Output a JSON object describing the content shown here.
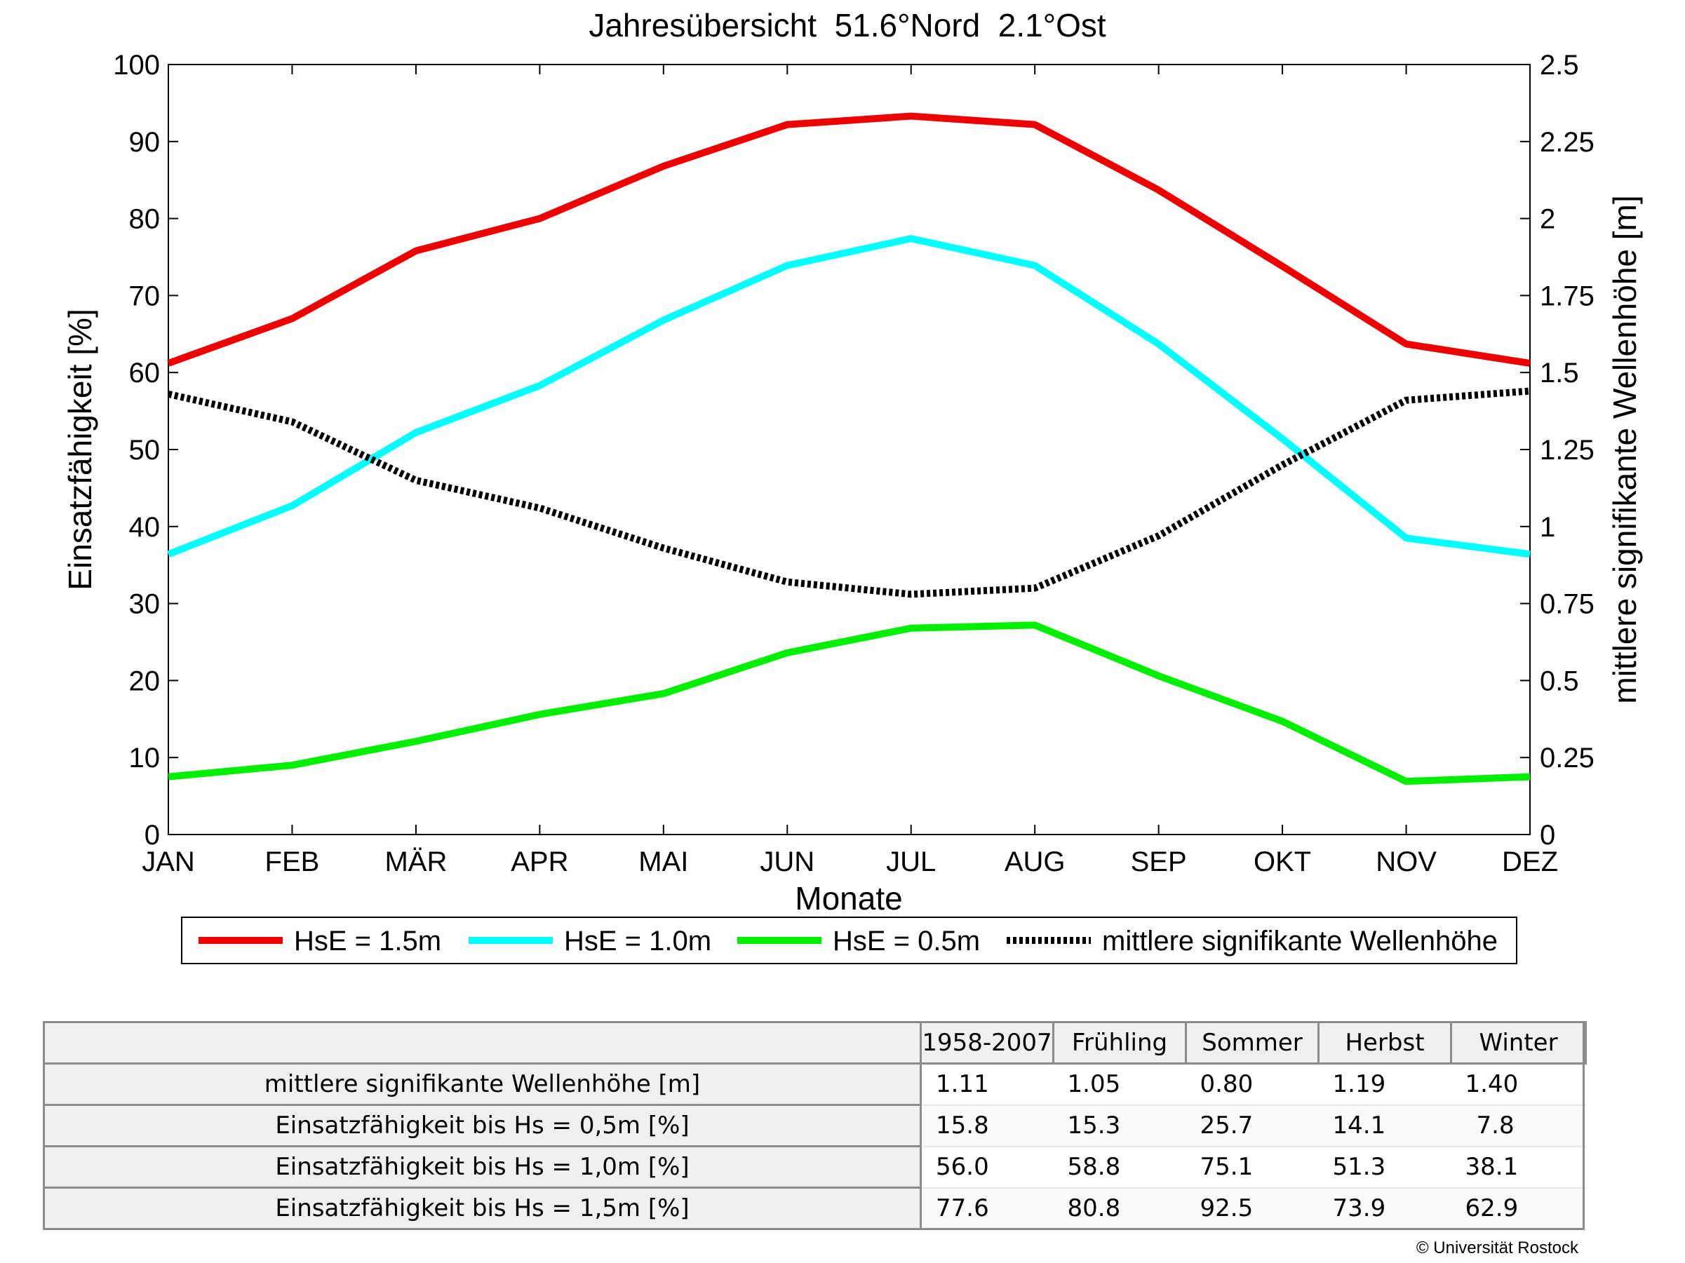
{
  "chart_data": {
    "type": "line",
    "title": "Jahresübersicht  51.6°Nord  2.1°Ost",
    "xlabel": "Monate",
    "ylabel": "Einsatzfähigkeit [%]",
    "y2label": "mittlere signifikante Wellenhöhe [m]",
    "categories": [
      "JAN",
      "FEB",
      "MÄR",
      "APR",
      "MAI",
      "JUN",
      "JUL",
      "AUG",
      "SEP",
      "OKT",
      "NOV",
      "DEZ"
    ],
    "ylim": [
      0,
      100
    ],
    "y2lim": [
      0,
      2.5
    ],
    "yticks": [
      "0",
      "10",
      "20",
      "30",
      "40",
      "50",
      "60",
      "70",
      "80",
      "90",
      "100"
    ],
    "y2ticks": [
      "0",
      "0.25",
      "0.5",
      "0.75",
      "1",
      "1.25",
      "1.5",
      "1.75",
      "2",
      "2.25",
      "2.5"
    ],
    "grid": false,
    "legend_position": "bottom",
    "series": [
      {
        "name": "HsE = 1.5m",
        "axis": "left",
        "color": "#ee0000",
        "style": "solid",
        "values": [
          61.2,
          67.0,
          75.8,
          80.0,
          86.8,
          92.2,
          93.3,
          92.2,
          83.7,
          73.8,
          63.7,
          61.2
        ]
      },
      {
        "name": "HsE = 1.0m",
        "axis": "left",
        "color": "#00ffff",
        "style": "solid",
        "values": [
          36.4,
          42.7,
          52.2,
          58.3,
          66.8,
          73.9,
          77.4,
          73.9,
          63.7,
          51.4,
          38.5,
          36.4
        ]
      },
      {
        "name": "HsE = 0.5m",
        "axis": "left",
        "color": "#00ee00",
        "style": "solid",
        "values": [
          7.5,
          9.0,
          12.1,
          15.6,
          18.3,
          23.6,
          26.8,
          27.2,
          20.6,
          14.7,
          6.9,
          7.5
        ]
      },
      {
        "name": "mittlere signifikante Wellenhöhe",
        "axis": "right",
        "color": "#000000",
        "style": "dotted",
        "values": [
          1.43,
          1.34,
          1.15,
          1.06,
          0.93,
          0.82,
          0.78,
          0.8,
          0.97,
          1.2,
          1.41,
          1.44
        ]
      }
    ]
  },
  "table": {
    "columns": [
      "1958-2007",
      "Frühling",
      "Sommer",
      "Herbst",
      "Winter"
    ],
    "rows": [
      {
        "label": "mittlere signifikante Wellenhöhe [m]",
        "values": [
          "1.11",
          "1.05",
          "0.80",
          "1.19",
          "1.40"
        ]
      },
      {
        "label": "Einsatzfähigkeit bis Hs = 0,5m [%]",
        "values": [
          "15.8",
          "15.3",
          "25.7",
          "14.1",
          "7.8"
        ]
      },
      {
        "label": "Einsatzfähigkeit bis Hs = 1,0m [%]",
        "values": [
          "56.0",
          "58.8",
          "75.1",
          "51.3",
          "38.1"
        ]
      },
      {
        "label": "Einsatzfähigkeit bis Hs = 1,5m [%]",
        "values": [
          "77.6",
          "80.8",
          "92.5",
          "73.9",
          "62.9"
        ]
      }
    ]
  },
  "copyright": "© Universität Rostock"
}
